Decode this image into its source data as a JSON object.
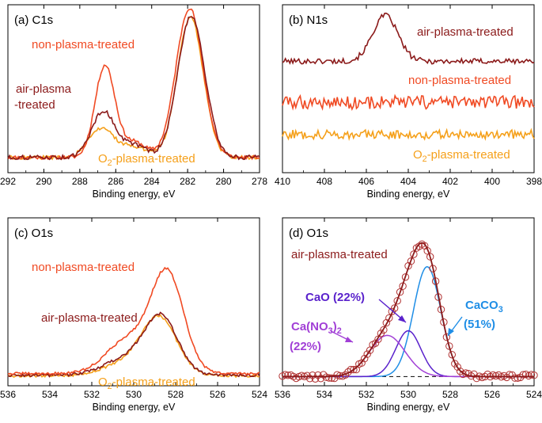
{
  "colors": {
    "non": "#f04a23",
    "air": "#8b1a1a",
    "o2": "#f5a01a",
    "caco3": "#1f8ee6",
    "cao": "#5a22cc",
    "cano3": "#a13fd6",
    "baseline": "#222222"
  },
  "chart_data": [
    {
      "id": "c1s",
      "type": "line",
      "title": "(a) C1s",
      "xlabel": "Binding energy, eV",
      "xlim": [
        292,
        278
      ],
      "ylim": [
        0,
        1.1
      ],
      "xticks": [
        292,
        290,
        288,
        286,
        284,
        282,
        280,
        278
      ],
      "series": [
        {
          "name": "non-plasma-treated",
          "color_key": "non",
          "label": "non-plasma-treated",
          "peaks": [
            {
              "c": 286.6,
              "a": 0.6,
              "w": 0.55
            },
            {
              "c": 285.0,
              "a": 0.1,
              "w": 0.7
            },
            {
              "c": 281.9,
              "a": 0.98,
              "w": 0.75
            }
          ],
          "base": 0.1,
          "noise": 0.012
        },
        {
          "name": "air-plasma-treated",
          "color_key": "air",
          "label_line1": "air-plasma",
          "label_line2": "-treated",
          "peaks": [
            {
              "c": 286.7,
              "a": 0.3,
              "w": 0.65
            },
            {
              "c": 285.0,
              "a": 0.08,
              "w": 0.7
            },
            {
              "c": 281.8,
              "a": 0.93,
              "w": 0.75
            }
          ],
          "base": 0.1,
          "noise": 0.014
        },
        {
          "name": "O2-plasma-treated",
          "color_key": "o2",
          "label": "O",
          "label_sub": "2",
          "label_rest": "-plasma-treated",
          "peaks": [
            {
              "c": 286.8,
              "a": 0.19,
              "w": 0.7
            },
            {
              "c": 285.0,
              "a": 0.07,
              "w": 0.7
            },
            {
              "c": 281.85,
              "a": 0.92,
              "w": 0.72
            }
          ],
          "base": 0.1,
          "noise": 0.012
        }
      ]
    },
    {
      "id": "n1s",
      "type": "line",
      "title": "(b) N1s",
      "xlabel": "Binding energy, eV",
      "xlim": [
        410,
        398
      ],
      "ylim": [
        0,
        1.1
      ],
      "xticks": [
        410,
        408,
        406,
        404,
        402,
        400,
        398
      ],
      "series": [
        {
          "name": "air-plasma-treated",
          "color_key": "air",
          "label": "air-plasma-treated",
          "peaks": [
            {
              "c": 405.1,
              "a": 0.3,
              "w": 0.6
            }
          ],
          "base": 0.73,
          "noise": 0.018
        },
        {
          "name": "non-plasma-treated",
          "color_key": "non",
          "label": "non-plasma-treated",
          "peaks": [],
          "base": 0.46,
          "noise": 0.045
        },
        {
          "name": "O2-plasma-treated",
          "color_key": "o2",
          "label": "O",
          "label_sub": "2",
          "label_rest": "-plasma-treated",
          "peaks": [],
          "base": 0.25,
          "noise": 0.03
        }
      ]
    },
    {
      "id": "o1s_a",
      "type": "line",
      "title": "(c) O1s",
      "xlabel": "Binding energy, eV",
      "xlim": [
        536,
        524
      ],
      "ylim": [
        0,
        1.1
      ],
      "xticks": [
        536,
        534,
        532,
        530,
        528,
        526,
        524
      ],
      "series": [
        {
          "name": "non-plasma-treated",
          "color_key": "non",
          "label": "non-plasma-treated",
          "peaks": [
            {
              "c": 528.4,
              "a": 0.65,
              "w": 0.78
            },
            {
              "c": 530.3,
              "a": 0.22,
              "w": 1.0
            }
          ],
          "base": 0.08,
          "noise": 0.008
        },
        {
          "name": "air-plasma-treated",
          "color_key": "air",
          "label": "air-plasma-treated",
          "peaks": [
            {
              "c": 528.7,
              "a": 0.38,
              "w": 0.8
            },
            {
              "c": 530.5,
              "a": 0.1,
              "w": 1.0
            }
          ],
          "base": 0.07,
          "noise": 0.01
        },
        {
          "name": "O2-plasma-treated",
          "color_key": "o2",
          "label": "O",
          "label_sub": "2",
          "label_rest": "-plasma-treated",
          "peaks": [
            {
              "c": 528.8,
              "a": 0.38,
              "w": 0.85
            },
            {
              "c": 530.6,
              "a": 0.07,
              "w": 1.0
            }
          ],
          "base": 0.065,
          "noise": 0.008
        }
      ]
    },
    {
      "id": "o1s_b",
      "type": "scatter",
      "title": "(d) O1s",
      "xlabel": "Binding energy, eV",
      "xlim": [
        536,
        524
      ],
      "ylim": [
        0,
        1.1
      ],
      "xticks": [
        536,
        534,
        532,
        530,
        528,
        526,
        524
      ],
      "series_label": "air-plasma-treated",
      "components": [
        {
          "name": "CaCO3",
          "color_key": "caco3",
          "c": 529.1,
          "a": 0.72,
          "w": 0.65,
          "label": "CaCO",
          "label_sub": "3",
          "percent": "(51%)"
        },
        {
          "name": "CaO",
          "color_key": "cao",
          "c": 530.0,
          "a": 0.3,
          "w": 0.6,
          "label": "CaO (22%)"
        },
        {
          "name": "Ca(NO3)2",
          "color_key": "cano3",
          "c": 531.0,
          "a": 0.27,
          "w": 0.85,
          "label": "Ca(NO",
          "label_sub": "3",
          "label_rest": ")",
          "label_sub2": "2",
          "percent": "(22%)"
        }
      ],
      "baseline": 0.06
    }
  ]
}
